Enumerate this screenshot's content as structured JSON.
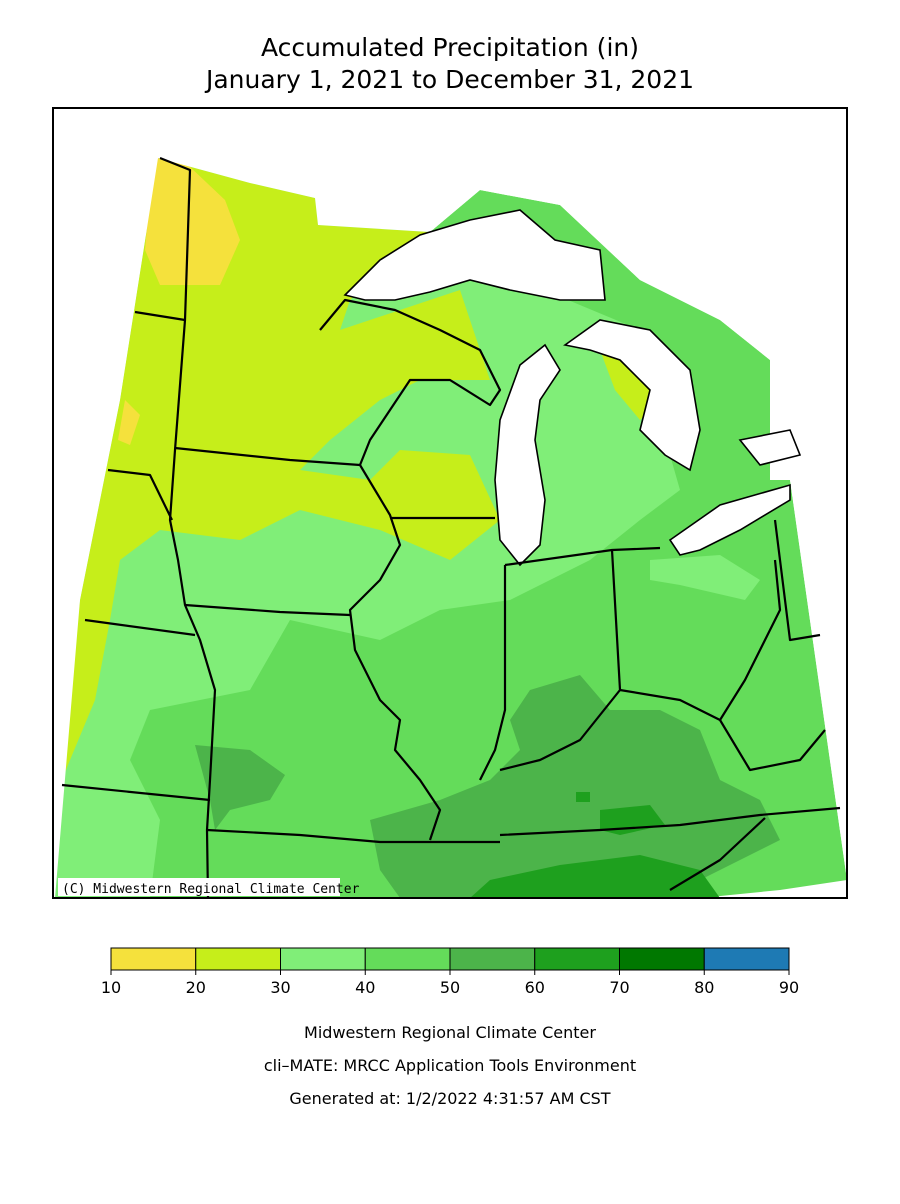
{
  "title": [
    "Accumulated Precipitation (in)",
    "January 1, 2021 to December 31, 2021"
  ],
  "map": {
    "copyright": "(C) Midwestern Regional Climate Center"
  },
  "legend": {
    "ticks": [
      10,
      20,
      30,
      40,
      50,
      60,
      70,
      80,
      90
    ],
    "colors": [
      "#f5e13c",
      "#c6ee1a",
      "#80ee78",
      "#64dc5a",
      "#4cb44a",
      "#1ea01e",
      "#007800",
      "#1e7ab4"
    ]
  },
  "footer": [
    "Midwestern Regional Climate Center",
    "cli–MATE: MRCC Application Tools Environment",
    "Generated at: 1/2/2022 4:31:57 AM CST"
  ]
}
